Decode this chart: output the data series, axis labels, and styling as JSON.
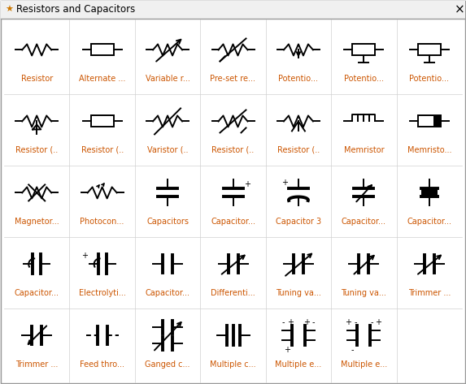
{
  "title": "Resistors and Capacitors",
  "background_color": "#f0f0f0",
  "panel_color": "#ffffff",
  "border_color": "#999999",
  "title_color": "#000000",
  "label_color": "#cc5500",
  "symbol_color": "#000000",
  "fig_w": 5.73,
  "fig_h": 4.73,
  "dpi": 100,
  "labels": [
    [
      "Resistor",
      "Alternate ...",
      "Variable r...",
      "Pre-set re...",
      "Potentio...",
      "Potentio...",
      "Potentio..."
    ],
    [
      "Resistor (..",
      "Resistor (..",
      "Varistor (..",
      "Resistor (..",
      "Resistor (..",
      "Memristor",
      "Memristo..."
    ],
    [
      "Magnetor...",
      "Photocon...",
      "Capacitors",
      "Capacitor...",
      "Capacitor 3",
      "Capacitor...",
      "Capacitor..."
    ],
    [
      "Capacitor...",
      "Electrolyti...",
      "Capacitor...",
      "Differenti...",
      "Tuning va...",
      "Tuning va...",
      "Trimmer ..."
    ],
    [
      "Trimmer ...",
      "Feed thro...",
      "Ganged c...",
      "Multiple c...",
      "Multiple e...",
      "Multiple e...",
      ""
    ]
  ]
}
